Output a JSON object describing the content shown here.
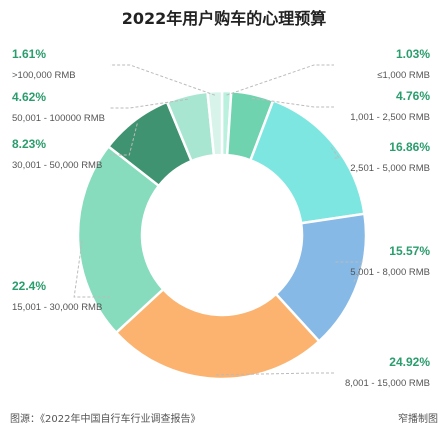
{
  "chart_data": {
    "type": "pie",
    "title": "2022年用户购车的心理预算",
    "source": "图源：《2022年中国自行车行业调查报告》",
    "credit": "窄播制图",
    "slices": [
      {
        "label": "≤1,000 RMB",
        "value": 1.03,
        "pct_text": "1.03%",
        "color": "#b9f0de"
      },
      {
        "label": "1,001 - 2,500 RMB",
        "value": 4.76,
        "pct_text": "4.76%",
        "color": "#6fd3b0"
      },
      {
        "label": "2,501 - 5,000 RMB",
        "value": 16.86,
        "pct_text": "16.86%",
        "color": "#7ee6e0"
      },
      {
        "label": "5,001 - 8,000 RMB",
        "value": 15.57,
        "pct_text": "15.57%",
        "color": "#86b9e6"
      },
      {
        "label": "8,001 - 15,000 RMB",
        "value": 24.92,
        "pct_text": "24.92%",
        "color": "#fbb36f"
      },
      {
        "label": "15,001 - 30,000 RMB",
        "value": 22.4,
        "pct_text": "22.4%",
        "color": "#86dcbd"
      },
      {
        "label": "30,001 - 50,000 RMB",
        "value": 8.23,
        "pct_text": "8.23%",
        "color": "#3f9371"
      },
      {
        "label": "50,001 - 100000 RMB",
        "value": 4.62,
        "pct_text": "4.62%",
        "color": "#a9e6d2"
      },
      {
        "label": ">100,000 RMB",
        "value": 1.61,
        "pct_text": "1.61%",
        "color": "#d7f3ea"
      }
    ]
  }
}
